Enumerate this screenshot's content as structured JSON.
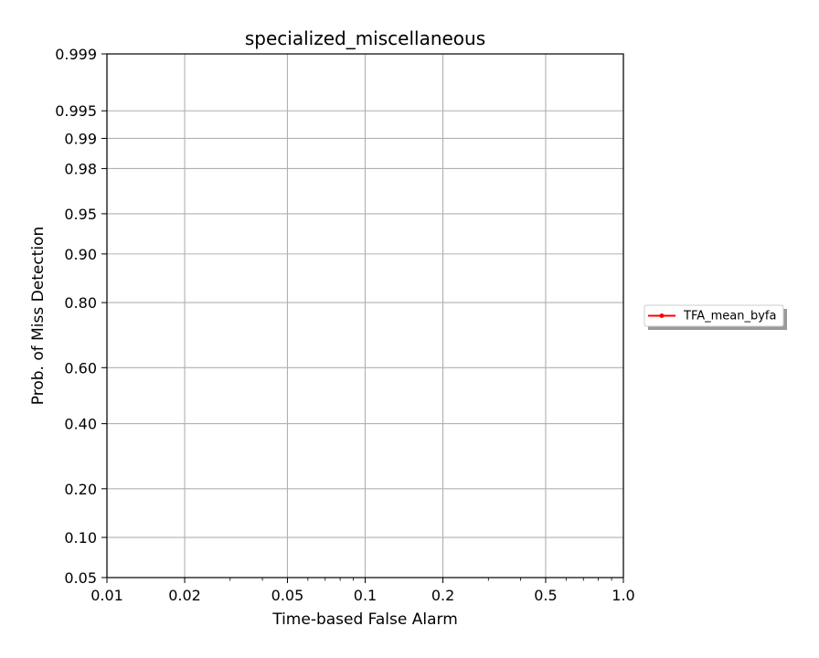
{
  "chart_data": {
    "type": "line",
    "title": "specialized_miscellaneous",
    "xlabel": "Time-based False Alarm",
    "ylabel": "Prob. of Miss Detection",
    "x_scale": "log",
    "y_scale": "normal-deviate (probit)",
    "xlim": [
      0.01,
      1.0
    ],
    "ylim": [
      0.05,
      0.999
    ],
    "x_ticks": [
      0.01,
      0.02,
      0.05,
      0.1,
      0.2,
      0.5,
      1.0
    ],
    "x_tick_labels": [
      "0.01",
      "0.02",
      "0.05",
      "0.1",
      "0.2",
      "0.5",
      "1.0"
    ],
    "y_ticks": [
      0.05,
      0.1,
      0.2,
      0.4,
      0.6,
      0.8,
      0.9,
      0.95,
      0.98,
      0.99,
      0.995,
      0.999
    ],
    "y_tick_labels": [
      "0.05",
      "0.10",
      "0.20",
      "0.40",
      "0.60",
      "0.80",
      "0.90",
      "0.95",
      "0.98",
      "0.99",
      "0.995",
      "0.999"
    ],
    "grid": true,
    "legend_placement": "right, outside plot",
    "series": [
      {
        "name": "TFA_mean_byfa",
        "color": "#ff0000",
        "marker": "dot",
        "x": [],
        "y": []
      }
    ]
  }
}
